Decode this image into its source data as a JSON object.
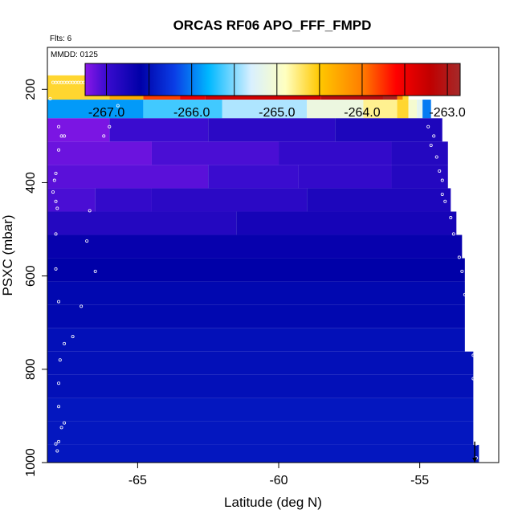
{
  "chart_data": {
    "type": "heatmap",
    "title": "ORCAS RF06 APO_FFF_FMPD",
    "subtitle": "Flts: 6",
    "inset_label": "MMDD: 0125",
    "xlabel": "Latitude (deg N)",
    "ylabel": "PSXC (mbar)",
    "xlim": [
      -68.2,
      -52.2
    ],
    "ylim": [
      1000,
      110
    ],
    "y_reversed": true,
    "grid": false,
    "x_ticks": [
      {
        "value": -65,
        "label": "-65"
      },
      {
        "value": -60,
        "label": "-60"
      },
      {
        "value": -55,
        "label": "-55"
      }
    ],
    "y_ticks": [
      {
        "value": 200,
        "label": "200"
      },
      {
        "value": 400,
        "label": "400"
      },
      {
        "value": 600,
        "label": "600"
      },
      {
        "value": 800,
        "label": "800"
      },
      {
        "value": 1000,
        "label": "1000"
      }
    ],
    "colorbar": {
      "range": [
        -267.25,
        -262.85
      ],
      "placement": "top",
      "colors": [
        "#8b17e8",
        "#3a0ccf",
        "#0000a8",
        "#0a3ee6",
        "#00b8ff",
        "#d9f0ff",
        "#ffffc0",
        "#ffc800",
        "#ff7d00",
        "#ff0000",
        "#c00000",
        "#a52a2a"
      ],
      "stops": [
        -267.25,
        -267.0,
        -266.6,
        -266.2,
        -265.8,
        -265.3,
        -264.9,
        -264.5,
        -264.0,
        -263.6,
        -263.2,
        -262.85
      ],
      "ticks": [
        {
          "value": -267.0,
          "label": "-267.0"
        },
        {
          "value": -266.0,
          "label": "-266.0"
        },
        {
          "value": -265.0,
          "label": "-265.0"
        },
        {
          "value": -264.0,
          "label": "-264.0"
        },
        {
          "value": -263.0,
          "label": "-263.0"
        }
      ],
      "separators": [
        -267.0,
        -266.5,
        -266.0,
        -265.5,
        -265.0,
        -264.5,
        -264.0,
        -263.5,
        -263.0
      ]
    },
    "bands": [
      {
        "p_top": 170,
        "p_bot": 222,
        "lat_max": -55.4,
        "segments": [
          {
            "lat0": -68.2,
            "lat1": -66.0,
            "value": -264.6
          },
          {
            "lat0": -66.0,
            "lat1": -64.8,
            "value": -264.3
          },
          {
            "lat0": -64.8,
            "lat1": -63.5,
            "value": -263.8
          },
          {
            "lat0": -63.5,
            "lat1": -62.6,
            "value": -263.5
          },
          {
            "lat0": -62.6,
            "lat1": -58.5,
            "value": -263.3
          },
          {
            "lat0": -58.5,
            "lat1": -56.3,
            "value": -263.1
          },
          {
            "lat0": -56.3,
            "lat1": -55.8,
            "value": -262.95
          },
          {
            "lat0": -55.8,
            "lat1": -55.6,
            "value": -264.0
          },
          {
            "lat0": -55.6,
            "lat1": -55.4,
            "value": -264.6
          }
        ]
      },
      {
        "p_top": 222,
        "p_bot": 262,
        "lat_max": -54.6,
        "segments": [
          {
            "lat0": -68.2,
            "lat1": -64.8,
            "value": -265.9
          },
          {
            "lat0": -64.8,
            "lat1": -62.0,
            "value": -265.65
          },
          {
            "lat0": -62.0,
            "lat1": -59.0,
            "value": -265.4
          },
          {
            "lat0": -59.0,
            "lat1": -57.0,
            "value": -265.1
          },
          {
            "lat0": -57.0,
            "lat1": -55.8,
            "value": -264.8
          },
          {
            "lat0": -55.8,
            "lat1": -55.4,
            "value": -264.6
          },
          {
            "lat0": -55.4,
            "lat1": -55.1,
            "value": -265.0
          },
          {
            "lat0": -55.1,
            "lat1": -54.9,
            "value": -265.2
          },
          {
            "lat0": -54.9,
            "lat1": -54.6,
            "value": -266.0
          }
        ]
      },
      {
        "p_top": 262,
        "p_bot": 312,
        "lat_max": -54.2,
        "segments": [
          {
            "lat0": -68.2,
            "lat1": -66.0,
            "value": -267.2
          },
          {
            "lat0": -66.0,
            "lat1": -62.5,
            "value": -267.0
          },
          {
            "lat0": -62.5,
            "lat1": -58.0,
            "value": -266.9
          },
          {
            "lat0": -58.0,
            "lat1": -54.2,
            "value": -266.8
          }
        ]
      },
      {
        "p_top": 312,
        "p_bot": 362,
        "lat_max": -54.0,
        "segments": [
          {
            "lat0": -68.2,
            "lat1": -64.5,
            "value": -267.15
          },
          {
            "lat0": -64.5,
            "lat1": -60.0,
            "value": -267.05
          },
          {
            "lat0": -60.0,
            "lat1": -56.0,
            "value": -266.95
          },
          {
            "lat0": -56.0,
            "lat1": -54.0,
            "value": -266.85
          }
        ]
      },
      {
        "p_top": 362,
        "p_bot": 412,
        "lat_max": -54.0,
        "segments": [
          {
            "lat0": -68.2,
            "lat1": -62.5,
            "value": -267.1
          },
          {
            "lat0": -62.5,
            "lat1": -59.3,
            "value": -267.0
          },
          {
            "lat0": -59.3,
            "lat1": -56.0,
            "value": -266.95
          },
          {
            "lat0": -56.0,
            "lat1": -54.0,
            "value": -266.85
          }
        ]
      },
      {
        "p_top": 412,
        "p_bot": 462,
        "lat_max": -53.9,
        "segments": [
          {
            "lat0": -68.2,
            "lat1": -66.5,
            "value": -267.05
          },
          {
            "lat0": -66.5,
            "lat1": -64.5,
            "value": -266.95
          },
          {
            "lat0": -64.5,
            "lat1": -59.0,
            "value": -266.9
          },
          {
            "lat0": -59.0,
            "lat1": -53.9,
            "value": -266.8
          }
        ]
      },
      {
        "p_top": 462,
        "p_bot": 512,
        "lat_max": -53.7,
        "segments": [
          {
            "lat0": -68.2,
            "lat1": -61.5,
            "value": -266.85
          },
          {
            "lat0": -61.5,
            "lat1": -53.7,
            "value": -266.75
          }
        ]
      },
      {
        "p_top": 512,
        "p_bot": 562,
        "lat_max": -53.5,
        "segments": [
          {
            "lat0": -68.2,
            "lat1": -53.5,
            "value": -266.65
          }
        ]
      },
      {
        "p_top": 562,
        "p_bot": 612,
        "lat_max": -53.4,
        "segments": [
          {
            "lat0": -68.2,
            "lat1": -53.4,
            "value": -266.6
          }
        ]
      },
      {
        "p_top": 612,
        "p_bot": 662,
        "lat_max": -53.4,
        "segments": [
          {
            "lat0": -68.2,
            "lat1": -53.4,
            "value": -266.55
          }
        ]
      },
      {
        "p_top": 662,
        "p_bot": 712,
        "lat_max": -53.4,
        "segments": [
          {
            "lat0": -68.2,
            "lat1": -53.4,
            "value": -266.55
          }
        ]
      },
      {
        "p_top": 712,
        "p_bot": 762,
        "lat_max": -53.4,
        "segments": [
          {
            "lat0": -68.2,
            "lat1": -53.4,
            "value": -266.5
          }
        ]
      },
      {
        "p_top": 762,
        "p_bot": 812,
        "lat_max": -53.1,
        "segments": [
          {
            "lat0": -68.2,
            "lat1": -53.1,
            "value": -266.5
          }
        ]
      },
      {
        "p_top": 812,
        "p_bot": 862,
        "lat_max": -53.1,
        "segments": [
          {
            "lat0": -68.2,
            "lat1": -53.1,
            "value": -266.5
          }
        ]
      },
      {
        "p_top": 862,
        "p_bot": 912,
        "lat_max": -53.1,
        "segments": [
          {
            "lat0": -68.2,
            "lat1": -53.1,
            "value": -266.45
          }
        ]
      },
      {
        "p_top": 912,
        "p_bot": 962,
        "lat_max": -53.1,
        "segments": [
          {
            "lat0": -68.2,
            "lat1": -53.1,
            "value": -266.45
          }
        ]
      },
      {
        "p_top": 962,
        "p_bot": 1010,
        "lat_max": -52.9,
        "segments": [
          {
            "lat0": -68.2,
            "lat1": -52.9,
            "value": -266.45
          }
        ]
      }
    ],
    "flight_track": [
      {
        "lat": -67.9,
        "p": 960
      },
      {
        "lat": -67.85,
        "p": 975
      },
      {
        "lat": -67.8,
        "p": 955
      },
      {
        "lat": -67.7,
        "p": 925
      },
      {
        "lat": -67.6,
        "p": 915
      },
      {
        "lat": -67.8,
        "p": 880
      },
      {
        "lat": -67.8,
        "p": 830
      },
      {
        "lat": -67.75,
        "p": 780
      },
      {
        "lat": -67.6,
        "p": 745
      },
      {
        "lat": -67.3,
        "p": 730
      },
      {
        "lat": -67.0,
        "p": 665
      },
      {
        "lat": -67.8,
        "p": 655
      },
      {
        "lat": -67.9,
        "p": 585
      },
      {
        "lat": -66.5,
        "p": 590
      },
      {
        "lat": -66.8,
        "p": 525
      },
      {
        "lat": -67.9,
        "p": 510
      },
      {
        "lat": -67.85,
        "p": 455
      },
      {
        "lat": -67.9,
        "p": 440
      },
      {
        "lat": -66.7,
        "p": 460
      },
      {
        "lat": -68.0,
        "p": 420
      },
      {
        "lat": -67.95,
        "p": 395
      },
      {
        "lat": -67.9,
        "p": 380
      },
      {
        "lat": -67.8,
        "p": 330
      },
      {
        "lat": -67.7,
        "p": 300
      },
      {
        "lat": -67.6,
        "p": 300
      },
      {
        "lat": -66.0,
        "p": 280
      },
      {
        "lat": -66.2,
        "p": 300
      },
      {
        "lat": -67.8,
        "p": 280
      },
      {
        "lat": -68.1,
        "p": 220
      },
      {
        "lat": -65.7,
        "p": 235
      },
      {
        "lat": -54.8,
        "p": 210
      },
      {
        "lat": -55.1,
        "p": 195
      },
      {
        "lat": -55.3,
        "p": 205
      },
      {
        "lat": -54.7,
        "p": 280
      },
      {
        "lat": -54.5,
        "p": 300
      },
      {
        "lat": -54.6,
        "p": 320
      },
      {
        "lat": -54.4,
        "p": 345
      },
      {
        "lat": -54.3,
        "p": 375
      },
      {
        "lat": -54.2,
        "p": 395
      },
      {
        "lat": -54.2,
        "p": 425
      },
      {
        "lat": -54.1,
        "p": 440
      },
      {
        "lat": -53.9,
        "p": 475
      },
      {
        "lat": -53.8,
        "p": 510
      },
      {
        "lat": -53.6,
        "p": 560
      },
      {
        "lat": -53.5,
        "p": 590
      },
      {
        "lat": -53.4,
        "p": 640
      },
      {
        "lat": -53.3,
        "p": 680
      },
      {
        "lat": -53.2,
        "p": 740
      },
      {
        "lat": -53.1,
        "p": 770
      },
      {
        "lat": -53.1,
        "p": 820
      },
      {
        "lat": -53.0,
        "p": 880
      },
      {
        "lat": -53.0,
        "p": 925
      },
      {
        "lat": -53.0,
        "p": 960
      },
      {
        "lat": -53.0,
        "p": 990
      }
    ],
    "flight_track_top": {
      "lat_from": -68.0,
      "lat_to": -55.3,
      "p": 185,
      "step": 0.1
    },
    "end_marker": {
      "lat": -53.05,
      "p_from": 955,
      "p_to": 1000
    }
  },
  "colors": {
    "track_marker": "#ffffff",
    "axis": "#000000",
    "background": "#ffffff"
  }
}
